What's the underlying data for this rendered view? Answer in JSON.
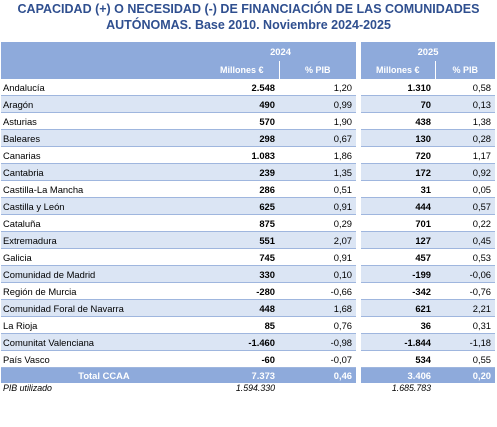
{
  "title": {
    "line1": "CAPACIDAD (+) O NECESIDAD (-) DE FINANCIACIÓN DE LAS COMUNIDADES",
    "line2": "AUTÓNOMAS. Base 2010. Noviembre 2024-2025"
  },
  "header": {
    "year1": "2024",
    "year2": "2025",
    "col_millones": "Millones €",
    "col_pib": "% PIB"
  },
  "rows": [
    {
      "name": "Andalucía",
      "m2024": "2.548",
      "p2024": "1,20",
      "m2025": "1.310",
      "p2025": "0,58"
    },
    {
      "name": "Aragón",
      "m2024": "490",
      "p2024": "0,99",
      "m2025": "70",
      "p2025": "0,13"
    },
    {
      "name": "Asturias",
      "m2024": "570",
      "p2024": "1,90",
      "m2025": "438",
      "p2025": "1,38"
    },
    {
      "name": "Baleares",
      "m2024": "298",
      "p2024": "0,67",
      "m2025": "130",
      "p2025": "0,28"
    },
    {
      "name": "Canarias",
      "m2024": "1.083",
      "p2024": "1,86",
      "m2025": "720",
      "p2025": "1,17"
    },
    {
      "name": "Cantabria",
      "m2024": "239",
      "p2024": "1,35",
      "m2025": "172",
      "p2025": "0,92"
    },
    {
      "name": "Castilla-La Mancha",
      "m2024": "286",
      "p2024": "0,51",
      "m2025": "31",
      "p2025": "0,05"
    },
    {
      "name": "Castilla y León",
      "m2024": "625",
      "p2024": "0,91",
      "m2025": "444",
      "p2025": "0,57"
    },
    {
      "name": "Cataluña",
      "m2024": "875",
      "p2024": "0,29",
      "m2025": "701",
      "p2025": "0,22"
    },
    {
      "name": "Extremadura",
      "m2024": "551",
      "p2024": "2,07",
      "m2025": "127",
      "p2025": "0,45"
    },
    {
      "name": "Galicia",
      "m2024": "745",
      "p2024": "0,91",
      "m2025": "457",
      "p2025": "0,53"
    },
    {
      "name": "Comunidad de Madrid",
      "m2024": "330",
      "p2024": "0,10",
      "m2025": "-199",
      "p2025": "-0,06"
    },
    {
      "name": "Región de Murcia",
      "m2024": "-280",
      "p2024": "-0,66",
      "m2025": "-342",
      "p2025": "-0,76"
    },
    {
      "name": "Comunidad Foral de Navarra",
      "m2024": "448",
      "p2024": "1,68",
      "m2025": "621",
      "p2025": "2,21"
    },
    {
      "name": "La Rioja",
      "m2024": "85",
      "p2024": "0,76",
      "m2025": "36",
      "p2025": "0,31"
    },
    {
      "name": "Comunitat Valenciana",
      "m2024": "-1.460",
      "p2024": "-0,98",
      "m2025": "-1.844",
      "p2025": "-1,18"
    },
    {
      "name": "País Vasco",
      "m2024": "-60",
      "p2024": "-0,07",
      "m2025": "534",
      "p2025": "0,55"
    }
  ],
  "total": {
    "name": "Total CCAA",
    "m2024": "7.373",
    "p2024": "0,46",
    "m2025": "3.406",
    "p2025": "0,20"
  },
  "footer": {
    "label": "PIB utilizado",
    "pib2024": "1.594.330",
    "pib2025": "1.685.783"
  }
}
